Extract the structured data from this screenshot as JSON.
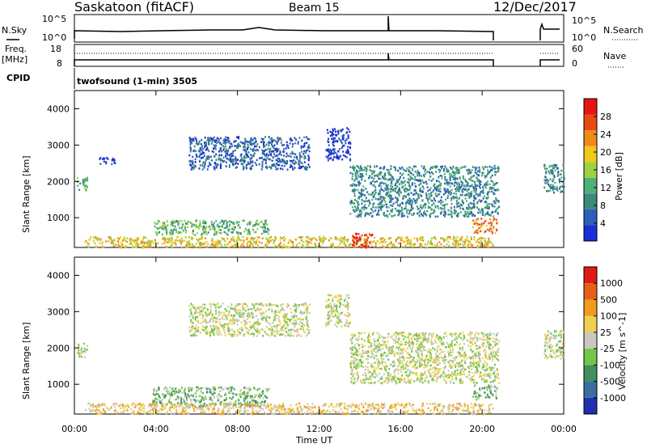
{
  "header": {
    "station": "Saskatoon (fitACF)",
    "beam": "Beam 15",
    "date": "12/Dec/2017"
  },
  "noise_panel": {
    "left_label": "N.Sky",
    "left_ticks": [
      "10^5",
      "10^0"
    ],
    "right_label": "N.Search",
    "right_ticks": [
      "10^5",
      "10^0"
    ]
  },
  "freq_panel": {
    "left_label_1": "Freq.",
    "left_label_2": "[MHz]",
    "left_ticks": [
      "18",
      "8"
    ],
    "right_label": "Nave",
    "right_ticks": [
      "60",
      "0"
    ]
  },
  "cpid_panel": {
    "label": "CPID",
    "text": "twofsound (1-min) 3505"
  },
  "colors": {
    "power": [
      "#1c2fd6",
      "#2f5fb8",
      "#3b8a7a",
      "#4fb07a",
      "#9fd240",
      "#f0c81c",
      "#f08a1c",
      "#e84a14",
      "#e61414"
    ],
    "velocity": [
      "#1f2fb0",
      "#3a6ea0",
      "#3f8f60",
      "#72c64a",
      "#c8c8c0",
      "#f0d050",
      "#f09c20",
      "#e86018",
      "#e01a14"
    ]
  },
  "chart_data": {
    "type": "heatmap",
    "x_tick_labels": [
      "00:00",
      "04:00",
      "08:00",
      "12:00",
      "16:00",
      "20:00",
      "00:00"
    ],
    "x_range": [
      0,
      24
    ],
    "xlabel": "Time UT",
    "panels": [
      {
        "name": "power",
        "ylabel": "Slant Range [km]",
        "y_ticks": [
          "4000",
          "3000",
          "2000",
          "1000"
        ],
        "ylim": [
          180,
          4500
        ],
        "colorbar_label": "Power [dB]",
        "colorbar_ticks": [
          "28",
          "24",
          "20",
          "16",
          "12",
          "8",
          "4"
        ],
        "colorbar_range": [
          0,
          30
        ],
        "features": [
          {
            "t0": 0.1,
            "t1": 0.6,
            "r0": 1750,
            "r1": 2150,
            "level": 3
          },
          {
            "t0": 1.2,
            "t1": 2.0,
            "r0": 2480,
            "r1": 2700,
            "level": 0
          },
          {
            "t0": 5.6,
            "t1": 11.5,
            "r0": 2350,
            "r1": 3250,
            "level": 1
          },
          {
            "t0": 12.3,
            "t1": 13.5,
            "r0": 2600,
            "r1": 3500,
            "level": 0
          },
          {
            "t0": 13.5,
            "t1": 20.8,
            "r0": 1050,
            "r1": 2450,
            "level": 2
          },
          {
            "t0": 19.5,
            "t1": 20.7,
            "r0": 600,
            "r1": 1000,
            "level": 6
          },
          {
            "t0": 3.8,
            "t1": 9.5,
            "r0": 550,
            "r1": 950,
            "level": 3
          },
          {
            "t0": 0.5,
            "t1": 20.5,
            "r0": 200,
            "r1": 500,
            "level": 5
          },
          {
            "t0": 13.6,
            "t1": 14.6,
            "r0": 200,
            "r1": 600,
            "level": 8
          },
          {
            "t0": 23.0,
            "t1": 24.0,
            "r0": 1700,
            "r1": 2500,
            "level": 2
          }
        ]
      },
      {
        "name": "velocity",
        "ylabel": "Slant Range [km]",
        "y_ticks": [
          "4000",
          "3000",
          "2000",
          "1000"
        ],
        "ylim": [
          180,
          4500
        ],
        "colorbar_label": "Velocity [m s^-1]",
        "colorbar_ticks": [
          "1000",
          "500",
          "100",
          "25",
          "-25",
          "-100",
          "-500",
          "-1000"
        ],
        "colorbar_range": [
          -1000,
          1000
        ],
        "features": [
          {
            "t0": 0.1,
            "t1": 0.6,
            "r0": 1750,
            "r1": 2150,
            "level": 4
          },
          {
            "t0": 5.6,
            "t1": 11.5,
            "r0": 2350,
            "r1": 3250,
            "level": 4
          },
          {
            "t0": 12.3,
            "t1": 13.5,
            "r0": 2600,
            "r1": 3500,
            "level": 4
          },
          {
            "t0": 13.5,
            "t1": 20.8,
            "r0": 1050,
            "r1": 2450,
            "level": 4
          },
          {
            "t0": 19.5,
            "t1": 20.7,
            "r0": 600,
            "r1": 1000,
            "level": 3
          },
          {
            "t0": 3.8,
            "t1": 9.5,
            "r0": 400,
            "r1": 950,
            "level": 3
          },
          {
            "t0": 0.5,
            "t1": 20.5,
            "r0": 200,
            "r1": 500,
            "level": 5
          },
          {
            "t0": 23.0,
            "t1": 24.0,
            "r0": 1700,
            "r1": 2500,
            "level": 4
          }
        ]
      }
    ]
  }
}
